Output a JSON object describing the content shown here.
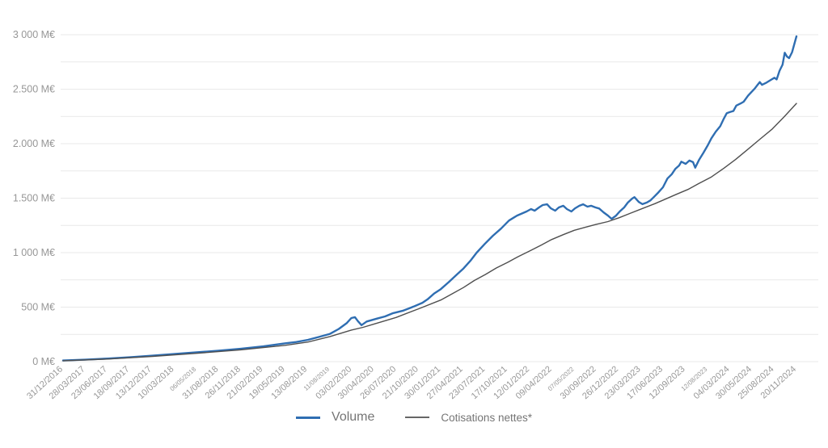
{
  "chart_data": {
    "type": "line",
    "title": "",
    "xlabel": "",
    "ylabel": "",
    "ylim": [
      0,
      3000
    ],
    "grid": "horizontal gridlines every 250 M€, light gray",
    "legend_position": "bottom-center",
    "y_axis": {
      "gridline_values": [
        0,
        250,
        500,
        750,
        1000,
        1250,
        1500,
        1750,
        2000,
        2250,
        2500,
        2750,
        3000
      ],
      "labels": [
        {
          "value": 3000,
          "text": "3 000 M€"
        },
        {
          "value": 2500,
          "text": "2.500 M€"
        },
        {
          "value": 2000,
          "text": "2.000 M€"
        },
        {
          "value": 1500,
          "text": "1.500 M€"
        },
        {
          "value": 1000,
          "text": "1 000 M€"
        },
        {
          "value": 500,
          "text": "500 M€"
        },
        {
          "value": 0,
          "text": "0 M€"
        }
      ]
    },
    "x_axis": {
      "ticks": [
        {
          "label": "31/12/2016",
          "small": false
        },
        {
          "label": "28/03/2017",
          "small": false
        },
        {
          "label": "23/06/2017",
          "small": false
        },
        {
          "label": "18/09/2017",
          "small": false
        },
        {
          "label": "13/12/2017",
          "small": false
        },
        {
          "label": "10/03/2018",
          "small": false
        },
        {
          "label": "06/05/2018",
          "small": true
        },
        {
          "label": "31/08/2018",
          "small": false
        },
        {
          "label": "26/11/2018",
          "small": false
        },
        {
          "label": "21/02/2019",
          "small": false
        },
        {
          "label": "19/05/2019",
          "small": false
        },
        {
          "label": "13/08/2019",
          "small": false
        },
        {
          "label": "11/08/2019",
          "small": true
        },
        {
          "label": "03/02/2020",
          "small": false
        },
        {
          "label": "30/04/2020",
          "small": false
        },
        {
          "label": "26/07/2020",
          "small": false
        },
        {
          "label": "21/10/2020",
          "small": false
        },
        {
          "label": "30/01/2021",
          "small": false
        },
        {
          "label": "27/04/2021",
          "small": false
        },
        {
          "label": "23/07/2021",
          "small": false
        },
        {
          "label": "17/10/2021",
          "small": false
        },
        {
          "label": "12/01/2022",
          "small": false
        },
        {
          "label": "09/04/2022",
          "small": false
        },
        {
          "label": "07/05/2022",
          "small": true
        },
        {
          "label": "30/09/2022",
          "small": false
        },
        {
          "label": "26/12/2022",
          "small": false
        },
        {
          "label": "23/03/2023",
          "small": false
        },
        {
          "label": "17/06/2023",
          "small": false
        },
        {
          "label": "12/09/2023",
          "small": false
        },
        {
          "label": "12/08/2023",
          "small": true
        },
        {
          "label": "04/03/2024",
          "small": false
        },
        {
          "label": "30/05/2024",
          "small": false
        },
        {
          "label": "25/08/2024",
          "small": false
        },
        {
          "label": "20/11/2024",
          "small": false
        }
      ]
    },
    "colors": {
      "volume_line": "#2f6eb2",
      "cotisations_line": "#4f4f4f",
      "gridline": "#e9e9e9",
      "axis_label": "#979797",
      "legend_text": "#757575"
    },
    "series": [
      {
        "name": "Volume",
        "color": "#2f6eb2",
        "points": [
          [
            0.0,
            10
          ],
          [
            0.03,
            18
          ],
          [
            0.061,
            28
          ],
          [
            0.091,
            40
          ],
          [
            0.122,
            55
          ],
          [
            0.151,
            70
          ],
          [
            0.182,
            85
          ],
          [
            0.212,
            100
          ],
          [
            0.242,
            118
          ],
          [
            0.273,
            140
          ],
          [
            0.303,
            168
          ],
          [
            0.318,
            180
          ],
          [
            0.334,
            200
          ],
          [
            0.348,
            225
          ],
          [
            0.364,
            255
          ],
          [
            0.376,
            300
          ],
          [
            0.387,
            355
          ],
          [
            0.393,
            400
          ],
          [
            0.398,
            408
          ],
          [
            0.402,
            372
          ],
          [
            0.407,
            335
          ],
          [
            0.414,
            368
          ],
          [
            0.428,
            395
          ],
          [
            0.439,
            415
          ],
          [
            0.45,
            445
          ],
          [
            0.464,
            468
          ],
          [
            0.478,
            505
          ],
          [
            0.49,
            540
          ],
          [
            0.497,
            572
          ],
          [
            0.506,
            625
          ],
          [
            0.515,
            665
          ],
          [
            0.526,
            730
          ],
          [
            0.537,
            800
          ],
          [
            0.546,
            855
          ],
          [
            0.556,
            930
          ],
          [
            0.564,
            1000
          ],
          [
            0.575,
            1080
          ],
          [
            0.586,
            1155
          ],
          [
            0.597,
            1220
          ],
          [
            0.608,
            1295
          ],
          [
            0.619,
            1340
          ],
          [
            0.632,
            1378
          ],
          [
            0.638,
            1400
          ],
          [
            0.643,
            1385
          ],
          [
            0.649,
            1415
          ],
          [
            0.654,
            1437
          ],
          [
            0.66,
            1444
          ],
          [
            0.665,
            1407
          ],
          [
            0.671,
            1385
          ],
          [
            0.676,
            1415
          ],
          [
            0.682,
            1430
          ],
          [
            0.687,
            1400
          ],
          [
            0.693,
            1378
          ],
          [
            0.698,
            1407
          ],
          [
            0.704,
            1430
          ],
          [
            0.709,
            1444
          ],
          [
            0.715,
            1422
          ],
          [
            0.72,
            1430
          ],
          [
            0.726,
            1415
          ],
          [
            0.731,
            1405
          ],
          [
            0.737,
            1370
          ],
          [
            0.743,
            1340
          ],
          [
            0.748,
            1310
          ],
          [
            0.754,
            1340
          ],
          [
            0.759,
            1378
          ],
          [
            0.765,
            1415
          ],
          [
            0.77,
            1459
          ],
          [
            0.776,
            1496
          ],
          [
            0.779,
            1510
          ],
          [
            0.785,
            1465
          ],
          [
            0.79,
            1445
          ],
          [
            0.796,
            1460
          ],
          [
            0.801,
            1480
          ],
          [
            0.807,
            1520
          ],
          [
            0.812,
            1555
          ],
          [
            0.818,
            1600
          ],
          [
            0.824,
            1680
          ],
          [
            0.83,
            1720
          ],
          [
            0.835,
            1770
          ],
          [
            0.84,
            1800
          ],
          [
            0.843,
            1835
          ],
          [
            0.849,
            1815
          ],
          [
            0.854,
            1845
          ],
          [
            0.859,
            1830
          ],
          [
            0.862,
            1780
          ],
          [
            0.867,
            1850
          ],
          [
            0.873,
            1915
          ],
          [
            0.879,
            1985
          ],
          [
            0.884,
            2050
          ],
          [
            0.89,
            2110
          ],
          [
            0.896,
            2160
          ],
          [
            0.901,
            2230
          ],
          [
            0.905,
            2280
          ],
          [
            0.909,
            2290
          ],
          [
            0.914,
            2300
          ],
          [
            0.918,
            2350
          ],
          [
            0.924,
            2370
          ],
          [
            0.928,
            2385
          ],
          [
            0.934,
            2440
          ],
          [
            0.938,
            2470
          ],
          [
            0.943,
            2505
          ],
          [
            0.947,
            2540
          ],
          [
            0.95,
            2565
          ],
          [
            0.953,
            2540
          ],
          [
            0.959,
            2560
          ],
          [
            0.965,
            2585
          ],
          [
            0.97,
            2605
          ],
          [
            0.973,
            2590
          ],
          [
            0.977,
            2670
          ],
          [
            0.981,
            2725
          ],
          [
            0.984,
            2835
          ],
          [
            0.987,
            2800
          ],
          [
            0.99,
            2785
          ],
          [
            0.994,
            2840
          ],
          [
            1.0,
            2985
          ]
        ]
      },
      {
        "name": "Cotisations nettes*",
        "color": "#4f4f4f",
        "points": [
          [
            0.0,
            8
          ],
          [
            0.061,
            24
          ],
          [
            0.122,
            48
          ],
          [
            0.182,
            76
          ],
          [
            0.242,
            108
          ],
          [
            0.303,
            150
          ],
          [
            0.334,
            180
          ],
          [
            0.364,
            230
          ],
          [
            0.393,
            290
          ],
          [
            0.409,
            315
          ],
          [
            0.424,
            345
          ],
          [
            0.454,
            405
          ],
          [
            0.485,
            485
          ],
          [
            0.515,
            565
          ],
          [
            0.53,
            620
          ],
          [
            0.546,
            680
          ],
          [
            0.561,
            745
          ],
          [
            0.576,
            800
          ],
          [
            0.591,
            860
          ],
          [
            0.606,
            910
          ],
          [
            0.621,
            965
          ],
          [
            0.636,
            1015
          ],
          [
            0.652,
            1070
          ],
          [
            0.666,
            1120
          ],
          [
            0.682,
            1165
          ],
          [
            0.697,
            1205
          ],
          [
            0.713,
            1235
          ],
          [
            0.727,
            1260
          ],
          [
            0.743,
            1285
          ],
          [
            0.758,
            1320
          ],
          [
            0.773,
            1360
          ],
          [
            0.79,
            1405
          ],
          [
            0.807,
            1450
          ],
          [
            0.821,
            1490
          ],
          [
            0.836,
            1535
          ],
          [
            0.852,
            1580
          ],
          [
            0.867,
            1635
          ],
          [
            0.884,
            1695
          ],
          [
            0.901,
            1775
          ],
          [
            0.917,
            1855
          ],
          [
            0.934,
            1950
          ],
          [
            0.95,
            2040
          ],
          [
            0.967,
            2135
          ],
          [
            0.983,
            2245
          ],
          [
            1.0,
            2370
          ]
        ]
      }
    ]
  },
  "legend": {
    "volume_label": "Volume",
    "cotisations_label": "Cotisations nettes*"
  }
}
